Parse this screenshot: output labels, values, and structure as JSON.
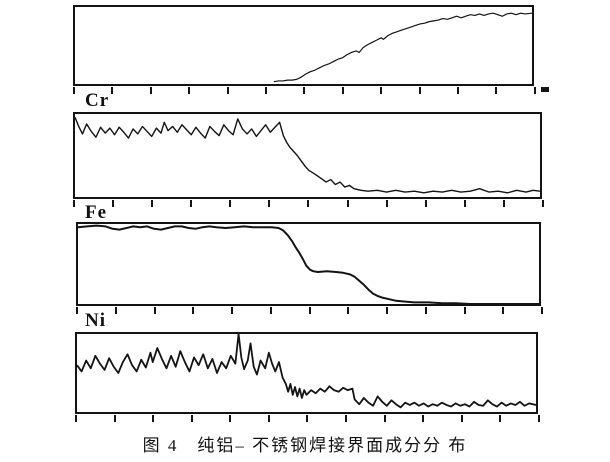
{
  "figure": {
    "caption": "图 4　纯铝– 不锈钢焊接界面成分分 布",
    "tick_count": 13,
    "panel_labels": [
      "",
      "Cr",
      "Fe",
      "Ni"
    ]
  },
  "chart_data": [
    {
      "type": "line",
      "title": "",
      "element_label": "",
      "xlabel": "",
      "ylabel": "",
      "xlim": [
        0,
        1
      ],
      "ylim": [
        0,
        100
      ],
      "grid": false,
      "legend": "none",
      "points": [
        [
          0.435,
          3
        ],
        [
          0.445,
          4
        ],
        [
          0.455,
          4
        ],
        [
          0.465,
          5
        ],
        [
          0.475,
          5
        ],
        [
          0.485,
          6
        ],
        [
          0.495,
          9
        ],
        [
          0.505,
          13
        ],
        [
          0.515,
          16
        ],
        [
          0.525,
          18
        ],
        [
          0.535,
          21
        ],
        [
          0.545,
          24
        ],
        [
          0.555,
          26
        ],
        [
          0.565,
          29
        ],
        [
          0.575,
          32
        ],
        [
          0.585,
          34
        ],
        [
          0.595,
          38
        ],
        [
          0.605,
          41
        ],
        [
          0.615,
          43
        ],
        [
          0.622,
          41
        ],
        [
          0.63,
          47
        ],
        [
          0.64,
          51
        ],
        [
          0.65,
          54
        ],
        [
          0.66,
          57
        ],
        [
          0.67,
          60
        ],
        [
          0.675,
          58
        ],
        [
          0.685,
          63
        ],
        [
          0.695,
          66
        ],
        [
          0.705,
          68
        ],
        [
          0.715,
          70
        ],
        [
          0.725,
          72
        ],
        [
          0.735,
          74
        ],
        [
          0.745,
          76
        ],
        [
          0.755,
          78
        ],
        [
          0.765,
          79
        ],
        [
          0.775,
          81
        ],
        [
          0.785,
          82
        ],
        [
          0.795,
          83
        ],
        [
          0.805,
          85
        ],
        [
          0.815,
          84
        ],
        [
          0.825,
          86
        ],
        [
          0.835,
          88
        ],
        [
          0.845,
          86
        ],
        [
          0.855,
          88
        ],
        [
          0.865,
          90
        ],
        [
          0.875,
          89
        ],
        [
          0.885,
          91
        ],
        [
          0.895,
          89
        ],
        [
          0.905,
          91
        ],
        [
          0.915,
          92
        ],
        [
          0.925,
          90
        ],
        [
          0.935,
          88
        ],
        [
          0.945,
          91
        ],
        [
          0.955,
          92
        ],
        [
          0.965,
          90
        ],
        [
          0.975,
          92
        ],
        [
          0.985,
          91
        ],
        [
          1,
          92
        ]
      ]
    },
    {
      "type": "line",
      "title": "",
      "element_label": "Cr",
      "xlabel": "",
      "ylabel": "",
      "xlim": [
        0,
        1
      ],
      "ylim": [
        0,
        100
      ],
      "grid": false,
      "legend": "none",
      "points": [
        [
          0,
          96
        ],
        [
          0.008,
          85
        ],
        [
          0.016,
          76
        ],
        [
          0.025,
          88
        ],
        [
          0.035,
          79
        ],
        [
          0.045,
          72
        ],
        [
          0.055,
          84
        ],
        [
          0.065,
          77
        ],
        [
          0.075,
          83
        ],
        [
          0.085,
          75
        ],
        [
          0.095,
          84
        ],
        [
          0.105,
          78
        ],
        [
          0.115,
          71
        ],
        [
          0.125,
          82
        ],
        [
          0.135,
          76
        ],
        [
          0.145,
          85
        ],
        [
          0.155,
          79
        ],
        [
          0.165,
          73
        ],
        [
          0.175,
          83
        ],
        [
          0.185,
          77
        ],
        [
          0.192,
          90
        ],
        [
          0.2,
          80
        ],
        [
          0.21,
          85
        ],
        [
          0.22,
          78
        ],
        [
          0.23,
          87
        ],
        [
          0.24,
          81
        ],
        [
          0.25,
          75
        ],
        [
          0.26,
          84
        ],
        [
          0.27,
          77
        ],
        [
          0.28,
          71
        ],
        [
          0.29,
          85
        ],
        [
          0.3,
          79
        ],
        [
          0.31,
          74
        ],
        [
          0.32,
          87
        ],
        [
          0.33,
          80
        ],
        [
          0.34,
          75
        ],
        [
          0.35,
          94
        ],
        [
          0.36,
          82
        ],
        [
          0.37,
          76
        ],
        [
          0.38,
          82
        ],
        [
          0.39,
          73
        ],
        [
          0.4,
          80
        ],
        [
          0.41,
          87
        ],
        [
          0.42,
          78
        ],
        [
          0.43,
          84
        ],
        [
          0.44,
          90
        ],
        [
          0.448,
          74
        ],
        [
          0.455,
          66
        ],
        [
          0.462,
          60
        ],
        [
          0.47,
          55
        ],
        [
          0.478,
          50
        ],
        [
          0.487,
          43
        ],
        [
          0.495,
          37
        ],
        [
          0.503,
          32
        ],
        [
          0.512,
          29
        ],
        [
          0.52,
          26
        ],
        [
          0.53,
          22
        ],
        [
          0.54,
          18
        ],
        [
          0.55,
          21
        ],
        [
          0.56,
          15
        ],
        [
          0.57,
          18
        ],
        [
          0.58,
          12
        ],
        [
          0.59,
          14
        ],
        [
          0.6,
          10
        ],
        [
          0.615,
          8
        ],
        [
          0.63,
          7
        ],
        [
          0.65,
          8
        ],
        [
          0.67,
          6
        ],
        [
          0.69,
          8
        ],
        [
          0.71,
          6
        ],
        [
          0.73,
          7
        ],
        [
          0.75,
          5
        ],
        [
          0.77,
          7
        ],
        [
          0.79,
          6
        ],
        [
          0.81,
          8
        ],
        [
          0.83,
          6
        ],
        [
          0.85,
          7
        ],
        [
          0.87,
          10
        ],
        [
          0.89,
          6
        ],
        [
          0.91,
          7
        ],
        [
          0.93,
          5
        ],
        [
          0.95,
          8
        ],
        [
          0.97,
          6
        ],
        [
          0.985,
          8
        ],
        [
          1,
          7
        ]
      ]
    },
    {
      "type": "line",
      "title": "",
      "element_label": "Fe",
      "xlabel": "",
      "ylabel": "",
      "xlim": [
        0,
        1
      ],
      "ylim": [
        0,
        100
      ],
      "grid": false,
      "legend": "none",
      "points": [
        [
          0,
          96
        ],
        [
          0.02,
          97
        ],
        [
          0.04,
          98
        ],
        [
          0.06,
          97
        ],
        [
          0.075,
          94
        ],
        [
          0.09,
          93
        ],
        [
          0.105,
          95
        ],
        [
          0.12,
          97
        ],
        [
          0.135,
          96
        ],
        [
          0.15,
          97
        ],
        [
          0.165,
          94
        ],
        [
          0.18,
          93
        ],
        [
          0.195,
          95
        ],
        [
          0.21,
          97
        ],
        [
          0.225,
          97
        ],
        [
          0.24,
          95
        ],
        [
          0.255,
          94
        ],
        [
          0.27,
          96
        ],
        [
          0.285,
          97
        ],
        [
          0.3,
          96
        ],
        [
          0.32,
          95
        ],
        [
          0.34,
          96
        ],
        [
          0.36,
          97
        ],
        [
          0.38,
          96
        ],
        [
          0.4,
          96
        ],
        [
          0.42,
          96
        ],
        [
          0.435,
          95
        ],
        [
          0.445,
          92
        ],
        [
          0.455,
          86
        ],
        [
          0.465,
          78
        ],
        [
          0.472,
          71
        ],
        [
          0.48,
          64
        ],
        [
          0.488,
          56
        ],
        [
          0.495,
          48
        ],
        [
          0.503,
          43
        ],
        [
          0.51,
          41
        ],
        [
          0.52,
          40
        ],
        [
          0.54,
          41
        ],
        [
          0.56,
          40
        ],
        [
          0.575,
          39
        ],
        [
          0.59,
          37
        ],
        [
          0.6,
          34
        ],
        [
          0.61,
          29
        ],
        [
          0.62,
          24
        ],
        [
          0.63,
          18
        ],
        [
          0.64,
          13
        ],
        [
          0.65,
          10
        ],
        [
          0.66,
          8
        ],
        [
          0.675,
          6
        ],
        [
          0.69,
          4
        ],
        [
          0.71,
          3
        ],
        [
          0.73,
          2
        ],
        [
          0.76,
          2
        ],
        [
          0.79,
          1
        ],
        [
          0.82,
          1
        ],
        [
          0.85,
          0
        ],
        [
          0.9,
          0
        ],
        [
          0.95,
          0
        ],
        [
          1,
          0
        ]
      ]
    },
    {
      "type": "line",
      "title": "",
      "element_label": "Ni",
      "xlabel": "",
      "ylabel": "",
      "xlim": [
        0,
        1
      ],
      "ylim": [
        0,
        100
      ],
      "grid": false,
      "legend": "none",
      "points": [
        [
          0,
          60
        ],
        [
          0.01,
          52
        ],
        [
          0.02,
          66
        ],
        [
          0.03,
          56
        ],
        [
          0.04,
          72
        ],
        [
          0.05,
          62
        ],
        [
          0.06,
          54
        ],
        [
          0.07,
          69
        ],
        [
          0.08,
          58
        ],
        [
          0.09,
          50
        ],
        [
          0.1,
          64
        ],
        [
          0.11,
          74
        ],
        [
          0.12,
          60
        ],
        [
          0.13,
          52
        ],
        [
          0.14,
          67
        ],
        [
          0.15,
          57
        ],
        [
          0.16,
          76
        ],
        [
          0.165,
          64
        ],
        [
          0.175,
          82
        ],
        [
          0.185,
          68
        ],
        [
          0.195,
          56
        ],
        [
          0.205,
          72
        ],
        [
          0.215,
          58
        ],
        [
          0.225,
          78
        ],
        [
          0.235,
          64
        ],
        [
          0.245,
          52
        ],
        [
          0.255,
          70
        ],
        [
          0.265,
          60
        ],
        [
          0.275,
          74
        ],
        [
          0.285,
          56
        ],
        [
          0.295,
          68
        ],
        [
          0.305,
          50
        ],
        [
          0.315,
          64
        ],
        [
          0.325,
          56
        ],
        [
          0.335,
          72
        ],
        [
          0.345,
          62
        ],
        [
          0.352,
          100
        ],
        [
          0.358,
          70
        ],
        [
          0.364,
          55
        ],
        [
          0.372,
          66
        ],
        [
          0.378,
          88
        ],
        [
          0.385,
          58
        ],
        [
          0.392,
          48
        ],
        [
          0.4,
          66
        ],
        [
          0.41,
          56
        ],
        [
          0.418,
          76
        ],
        [
          0.425,
          62
        ],
        [
          0.432,
          52
        ],
        [
          0.44,
          64
        ],
        [
          0.448,
          44
        ],
        [
          0.455,
          36
        ],
        [
          0.46,
          26
        ],
        [
          0.465,
          36
        ],
        [
          0.47,
          22
        ],
        [
          0.475,
          32
        ],
        [
          0.48,
          20
        ],
        [
          0.485,
          30
        ],
        [
          0.49,
          18
        ],
        [
          0.495,
          28
        ],
        [
          0.5,
          22
        ],
        [
          0.51,
          28
        ],
        [
          0.52,
          24
        ],
        [
          0.53,
          30
        ],
        [
          0.54,
          26
        ],
        [
          0.55,
          33
        ],
        [
          0.56,
          28
        ],
        [
          0.57,
          26
        ],
        [
          0.58,
          31
        ],
        [
          0.59,
          28
        ],
        [
          0.6,
          30
        ],
        [
          0.605,
          16
        ],
        [
          0.615,
          10
        ],
        [
          0.625,
          18
        ],
        [
          0.635,
          12
        ],
        [
          0.645,
          8
        ],
        [
          0.655,
          20
        ],
        [
          0.665,
          13
        ],
        [
          0.675,
          8
        ],
        [
          0.685,
          15
        ],
        [
          0.695,
          10
        ],
        [
          0.705,
          6
        ],
        [
          0.715,
          12
        ],
        [
          0.725,
          9
        ],
        [
          0.735,
          12
        ],
        [
          0.745,
          8
        ],
        [
          0.755,
          11
        ],
        [
          0.765,
          7
        ],
        [
          0.775,
          10
        ],
        [
          0.785,
          8
        ],
        [
          0.795,
          12
        ],
        [
          0.805,
          9
        ],
        [
          0.815,
          7
        ],
        [
          0.825,
          11
        ],
        [
          0.835,
          8
        ],
        [
          0.845,
          10
        ],
        [
          0.855,
          7
        ],
        [
          0.865,
          13
        ],
        [
          0.875,
          9
        ],
        [
          0.885,
          8
        ],
        [
          0.895,
          15
        ],
        [
          0.905,
          10
        ],
        [
          0.915,
          7
        ],
        [
          0.925,
          12
        ],
        [
          0.935,
          8
        ],
        [
          0.945,
          11
        ],
        [
          0.955,
          9
        ],
        [
          0.965,
          13
        ],
        [
          0.975,
          8
        ],
        [
          0.985,
          11
        ],
        [
          1,
          9
        ]
      ]
    }
  ]
}
